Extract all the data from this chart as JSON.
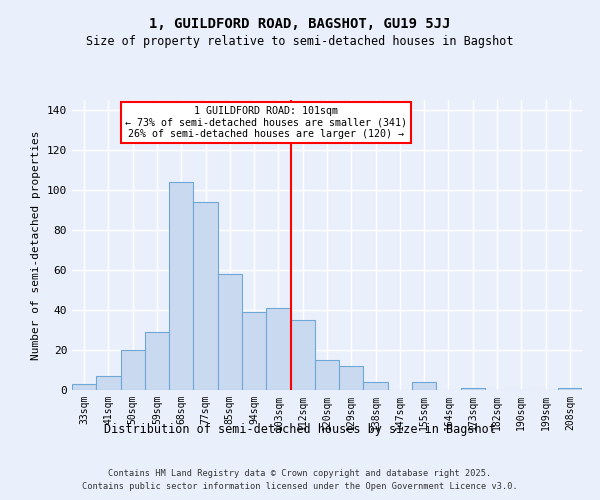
{
  "title1": "1, GUILDFORD ROAD, BAGSHOT, GU19 5JJ",
  "title2": "Size of property relative to semi-detached houses in Bagshot",
  "xlabel": "Distribution of semi-detached houses by size in Bagshot",
  "ylabel": "Number of semi-detached properties",
  "bar_labels": [
    "33sqm",
    "41sqm",
    "50sqm",
    "59sqm",
    "68sqm",
    "77sqm",
    "85sqm",
    "94sqm",
    "103sqm",
    "112sqm",
    "120sqm",
    "129sqm",
    "138sqm",
    "147sqm",
    "155sqm",
    "164sqm",
    "173sqm",
    "182sqm",
    "190sqm",
    "199sqm",
    "208sqm"
  ],
  "bar_values": [
    3,
    7,
    20,
    29,
    104,
    94,
    58,
    39,
    41,
    35,
    15,
    12,
    4,
    0,
    4,
    0,
    1,
    0,
    0,
    0,
    1
  ],
  "bar_color": "#c9d9f0",
  "bar_edge_color": "#6fa8d6",
  "vline_x": 8.5,
  "vline_color": "red",
  "annotation_line1": "1 GUILDFORD ROAD: 101sqm",
  "annotation_line2": "← 73% of semi-detached houses are smaller (341)",
  "annotation_line3": "26% of semi-detached houses are larger (120) →",
  "ylim": [
    0,
    145
  ],
  "yticks": [
    0,
    20,
    40,
    60,
    80,
    100,
    120,
    140
  ],
  "footer1": "Contains HM Land Registry data © Crown copyright and database right 2025.",
  "footer2": "Contains public sector information licensed under the Open Government Licence v3.0.",
  "bg_color": "#eaf0fb",
  "grid_color": "#ffffff"
}
